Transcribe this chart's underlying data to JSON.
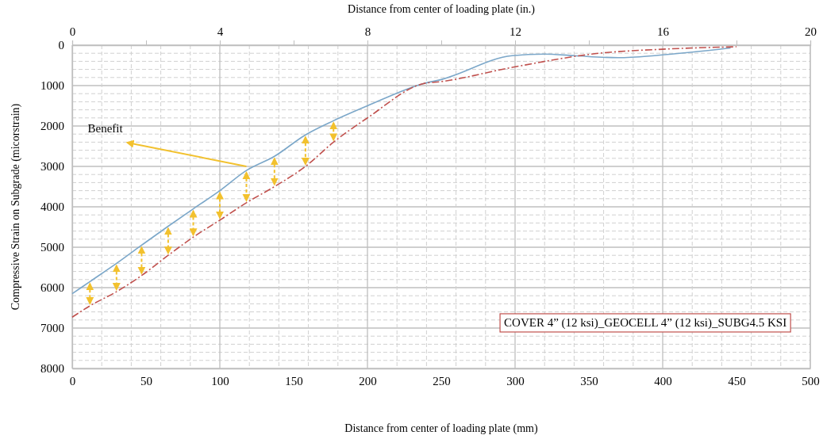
{
  "chart_data": {
    "type": "line",
    "xlabel": "Distance from center of loading plate (mm)",
    "ylabel": "Compressive Strain on Subgrade (micorstrain)",
    "x2label": "Distance from center of loading plate (in.)",
    "xlim": [
      0,
      500
    ],
    "xticks": [
      0,
      50,
      100,
      150,
      200,
      250,
      300,
      350,
      400,
      450,
      500
    ],
    "x2lim": [
      0,
      20
    ],
    "x2ticks": [
      0,
      {
        "value": 2,
        "label": null
      },
      4,
      {
        "value": 6,
        "label": null
      },
      8,
      {
        "value": 10,
        "label": null
      },
      12,
      {
        "value": 14,
        "label": null
      },
      16,
      {
        "value": 18,
        "label": null
      },
      20
    ],
    "ylim": [
      8000,
      0
    ],
    "yticks": [
      0,
      1000,
      2000,
      3000,
      4000,
      5000,
      6000,
      7000,
      8000
    ],
    "grid": true,
    "series": [
      {
        "color": "#7ba7c9",
        "line_style": "solid",
        "x": [
          0,
          12,
          30,
          47,
          65,
          82,
          100,
          118,
          137,
          158,
          177,
          200,
          238,
          250,
          298,
          320,
          340,
          370,
          397,
          446
        ],
        "values": [
          6150,
          5850,
          5400,
          4950,
          4480,
          4050,
          3600,
          3100,
          2750,
          2220,
          1870,
          1500,
          950,
          850,
          260,
          220,
          260,
          310,
          250,
          70
        ]
      },
      {
        "color": "#c0504d",
        "line_style": "dashed",
        "x": [
          0,
          12,
          30,
          47,
          65,
          82,
          100,
          118,
          137,
          158,
          177,
          200,
          238,
          250,
          298,
          357,
          400,
          450
        ],
        "values": [
          6730,
          6450,
          6100,
          5700,
          5200,
          4750,
          4330,
          3900,
          3500,
          3000,
          2400,
          1800,
          950,
          900,
          550,
          200,
          100,
          40
        ]
      }
    ],
    "annotations": [
      {
        "text": "Benefit",
        "x": 118,
        "y": 3000
      },
      "COVER 4” (12 ksi)_GEOCELL 4” (12 ksi)_SUBG4.5 KSI"
    ]
  }
}
